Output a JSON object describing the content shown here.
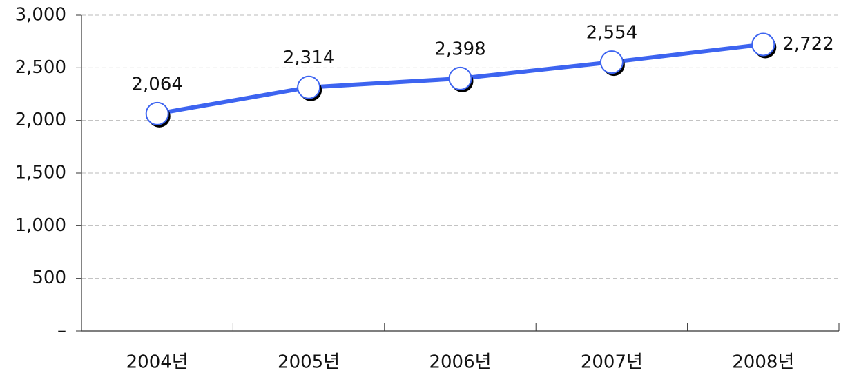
{
  "chart_data": {
    "type": "line",
    "categories": [
      "2004년",
      "2005년",
      "2006년",
      "2007년",
      "2008년"
    ],
    "values": [
      2064,
      2314,
      2398,
      2554,
      2722
    ],
    "value_labels": [
      "2,064",
      "2,314",
      "2,398",
      "2,554",
      "2,722"
    ],
    "color": "#3d64f0",
    "ylim": [
      0,
      3000
    ],
    "yticks": [
      {
        "value": 0,
        "label": "–"
      },
      500,
      {
        "value": 1000,
        "label": "1,000"
      },
      {
        "value": 1500,
        "label": "1,500"
      },
      {
        "value": 2000,
        "label": "2,000"
      },
      {
        "value": 2500,
        "label": "2,500"
      },
      {
        "value": 3000,
        "label": "3,000"
      }
    ],
    "grid": true
  }
}
